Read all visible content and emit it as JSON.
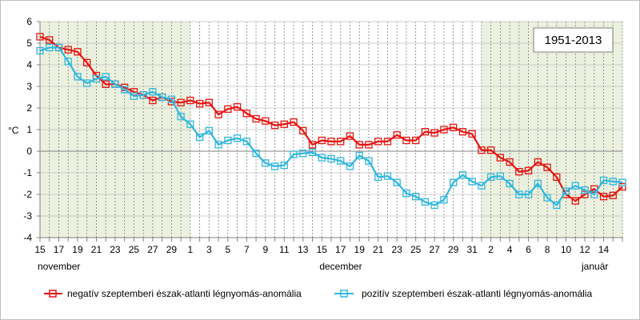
{
  "chart_data": {
    "type": "line",
    "title": "1951-2013",
    "ylabel": "°C",
    "ylim": [
      -4,
      6
    ],
    "yticks": [
      "6",
      "5",
      "4",
      "3",
      "2",
      "1",
      "0",
      "-1",
      "-2",
      "-3",
      "-4"
    ],
    "x_tick_labels": [
      "15",
      "17",
      "19",
      "21",
      "23",
      "25",
      "27",
      "29",
      "1",
      "3",
      "5",
      "7",
      "9",
      "11",
      "13",
      "15",
      "17",
      "19",
      "21",
      "23",
      "25",
      "27",
      "29",
      "31",
      "2",
      "4",
      "6",
      "8",
      "10",
      "12",
      "14"
    ],
    "month_labels": [
      "november",
      "december",
      "január"
    ],
    "shaded_color": "#ebf1de",
    "grid": true,
    "legend_position": "bottom",
    "series": [
      {
        "name": "negatív szeptemberi észak-atlanti légnyomás-anomália",
        "color": "#e8130f",
        "values": [
          5.3,
          5.15,
          4.8,
          4.7,
          4.6,
          4.1,
          3.5,
          3.1,
          3.1,
          2.95,
          2.75,
          2.6,
          2.35,
          2.5,
          2.3,
          2.25,
          2.35,
          2.2,
          2.25,
          1.7,
          1.95,
          2.05,
          1.75,
          1.5,
          1.4,
          1.2,
          1.25,
          1.35,
          0.95,
          0.3,
          0.5,
          0.45,
          0.45,
          0.7,
          0.3,
          0.3,
          0.45,
          0.45,
          0.75,
          0.5,
          0.5,
          0.9,
          0.85,
          1.0,
          1.1,
          0.9,
          0.8,
          0.05,
          0.05,
          -0.3,
          -0.5,
          -0.95,
          -0.9,
          -0.5,
          -0.75,
          -1.2,
          -2.0,
          -2.3,
          -2.0,
          -1.75,
          -2.1,
          -2.05,
          -1.65
        ]
      },
      {
        "name": "pozitív szeptemberi észak-atlanti légnyomás-anomália",
        "color": "#2fb7df",
        "values": [
          4.65,
          4.8,
          4.8,
          4.15,
          3.45,
          3.15,
          3.35,
          3.45,
          3.1,
          2.85,
          2.55,
          2.6,
          2.75,
          2.5,
          2.4,
          1.6,
          1.25,
          0.65,
          0.95,
          0.3,
          0.5,
          0.6,
          0.45,
          -0.1,
          -0.55,
          -0.7,
          -0.65,
          -0.15,
          -0.1,
          -0.05,
          -0.3,
          -0.35,
          -0.45,
          -0.7,
          -0.2,
          -0.45,
          -1.2,
          -1.15,
          -1.45,
          -1.95,
          -2.1,
          -2.35,
          -2.5,
          -2.25,
          -1.45,
          -1.1,
          -1.4,
          -1.6,
          -1.2,
          -1.15,
          -1.5,
          -2.0,
          -2.0,
          -1.5,
          -2.15,
          -2.5,
          -1.85,
          -1.6,
          -1.8,
          -2.0,
          -1.35,
          -1.4,
          -1.45
        ]
      }
    ]
  }
}
